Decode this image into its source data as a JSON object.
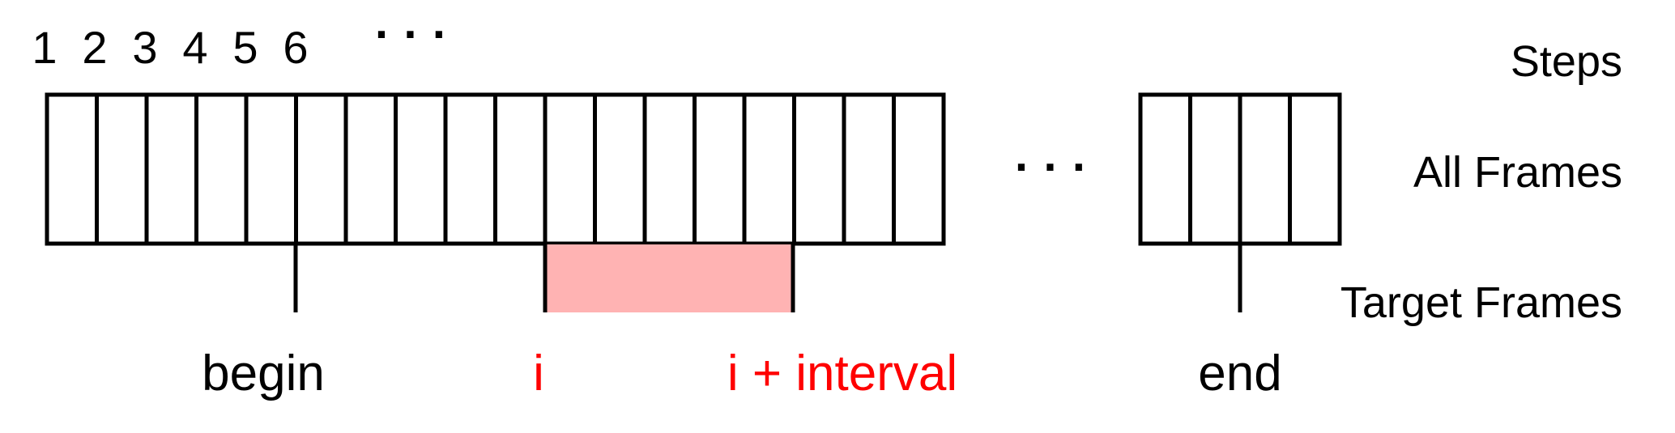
{
  "step_numbers": [
    "1",
    "2",
    "3",
    "4",
    "5",
    "6"
  ],
  "steps_ellipsis": "· · ·",
  "frames_ellipsis": "· · ·",
  "row_labels": {
    "steps": "Steps",
    "all_frames": "All Frames",
    "target_frames": "Target Frames"
  },
  "markers": {
    "begin": "begin",
    "i": "i",
    "i_interval": "i + interval",
    "end": "end"
  },
  "frames": {
    "main_block_count": 18,
    "end_block_count": 4,
    "begin_frame_index": 5,
    "i_frame_index": 10,
    "interval_frames": 5
  },
  "colors": {
    "stroke": "#000000",
    "highlight_fill": "#ffb3b3",
    "highlight_text": "#ff0000",
    "text": "#000000"
  }
}
